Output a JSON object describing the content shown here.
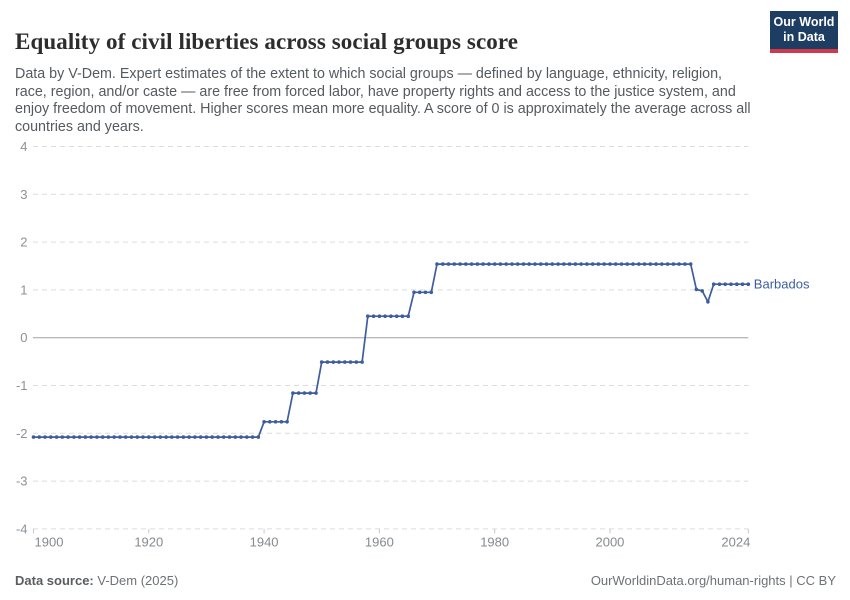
{
  "header": {
    "title": "Equality of civil liberties across social groups score",
    "subtitle": "Data by V-Dem. Expert estimates of the extent to which social groups — defined by language, ethnicity, religion, race, region, and/or caste — are free from forced labor, have property rights and access to the justice system, and enjoy freedom of movement. Higher scores mean more equality. A score of 0 is approximately the average across all countries and years.",
    "logo": {
      "line1": "Our World",
      "line2": "in Data",
      "bg_color": "#1d3d63",
      "stripe_color": "#d0394a"
    }
  },
  "chart_data": {
    "type": "line",
    "title": "Equality of civil liberties across social groups score",
    "entity_label": "Barbados",
    "line_color": "#3e5d9e",
    "x_ticks": [
      1900,
      1920,
      1940,
      1960,
      1980,
      2000,
      2024
    ],
    "y_ticks": [
      4,
      3,
      2,
      1,
      0,
      -1,
      -2,
      -3,
      -4
    ],
    "xlim": [
      1900,
      2024
    ],
    "ylim": [
      -4,
      4
    ],
    "grid": "dashed horizontal, solid zero line, markers on every yearly point",
    "series": [
      {
        "name": "Barbados",
        "steps": [
          {
            "from": 1900,
            "to": 1939,
            "value": -2.08
          },
          {
            "from": 1940,
            "to": 1944,
            "value": -1.76
          },
          {
            "from": 1945,
            "to": 1949,
            "value": -1.16
          },
          {
            "from": 1950,
            "to": 1957,
            "value": -0.51
          },
          {
            "from": 1958,
            "to": 1965,
            "value": 0.45
          },
          {
            "from": 1966,
            "to": 1969,
            "value": 0.95
          },
          {
            "from": 1970,
            "to": 2014,
            "value": 1.54
          },
          {
            "from": 2015,
            "to": 2015,
            "value": 1.01
          },
          {
            "from": 2016,
            "to": 2016,
            "value": 0.98
          },
          {
            "from": 2017,
            "to": 2017,
            "value": 0.75
          },
          {
            "from": 2018,
            "to": 2024,
            "value": 1.12
          }
        ]
      }
    ]
  },
  "footer": {
    "source_label": "Data source:",
    "source_value": " V-Dem (2025)",
    "url": "OurWorldinData.org/human-rights",
    "license": " | CC BY"
  }
}
